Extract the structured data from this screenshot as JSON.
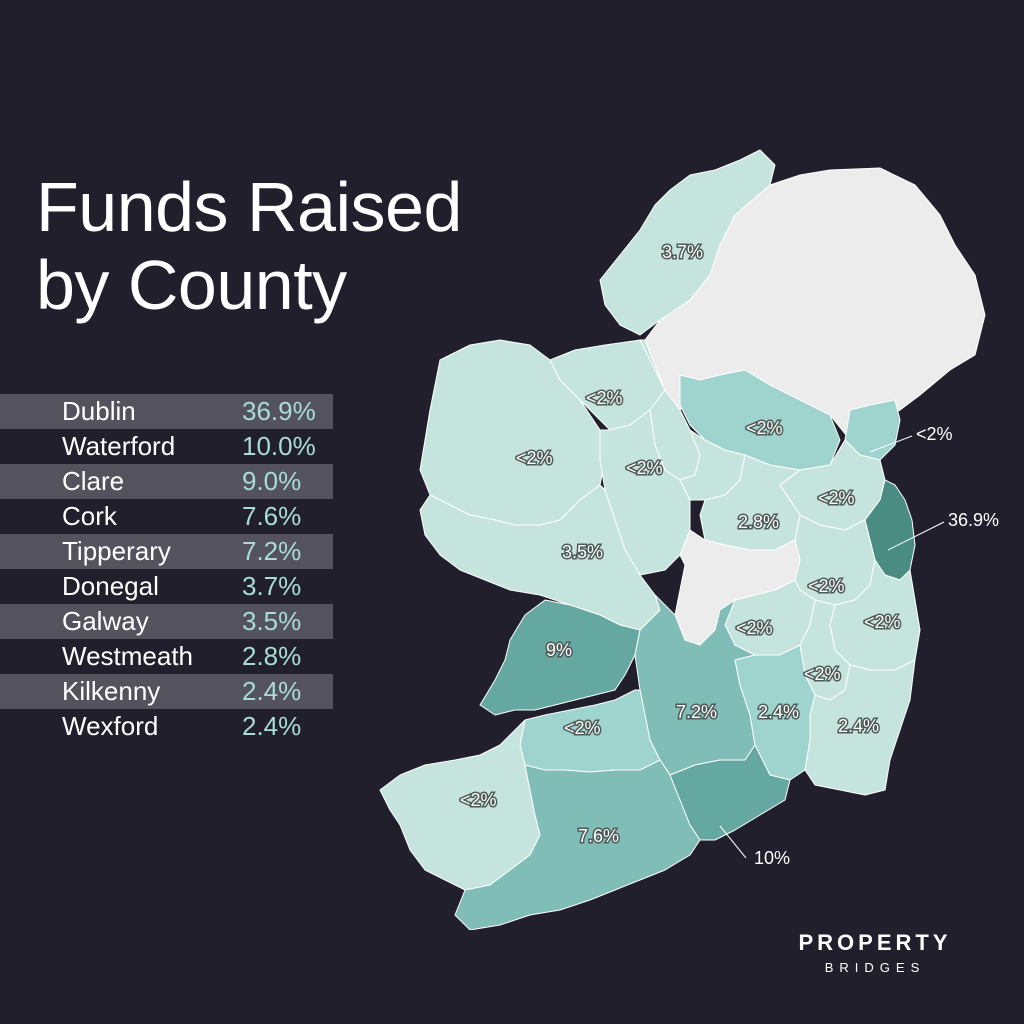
{
  "title": {
    "line1": "Funds Raised",
    "line2": "by County"
  },
  "table": [
    {
      "county": "Dublin",
      "pct": "36.9%"
    },
    {
      "county": "Waterford",
      "pct": "10.0%"
    },
    {
      "county": "Clare",
      "pct": "9.0%"
    },
    {
      "county": "Cork",
      "pct": "7.6%"
    },
    {
      "county": "Tipperary",
      "pct": "7.2%"
    },
    {
      "county": "Donegal",
      "pct": "3.7%"
    },
    {
      "county": "Galway",
      "pct": "3.5%"
    },
    {
      "county": "Westmeath",
      "pct": "2.8%"
    },
    {
      "county": "Kilkenny",
      "pct": "2.4%"
    },
    {
      "county": "Wexford",
      "pct": "2.4%"
    }
  ],
  "map_labels": {
    "donegal": "3.7%",
    "sligo": "<2%",
    "mayo": "<2%",
    "roscommon": "<2%",
    "cavan": "<2%",
    "louth": "<2%",
    "meath": "<2%",
    "dublin": "36.9%",
    "westmeath": "2.8%",
    "galway": "3.5%",
    "kildare": "<2%",
    "laois": "<2%",
    "wicklow": "<2%",
    "carlow": "<2%",
    "clare": "9%",
    "limerick": "<2%",
    "tipperary": "7.2%",
    "kilkenny": "2.4%",
    "wexford": "2.4%",
    "kerry": "<2%",
    "cork": "7.6%",
    "waterford": "10%"
  },
  "colors": {
    "background": "#221f2d",
    "very_low": "#c6e4de",
    "low": "#9ed3ce",
    "mid": "#7fbdb6",
    "high": "#65a8a1",
    "highest": "#4a8b82",
    "northern_ireland": "#ececec",
    "accent_text": "#a7ddd3"
  },
  "logo": {
    "main": "PROPERTY",
    "sub": "BRIDGES"
  }
}
